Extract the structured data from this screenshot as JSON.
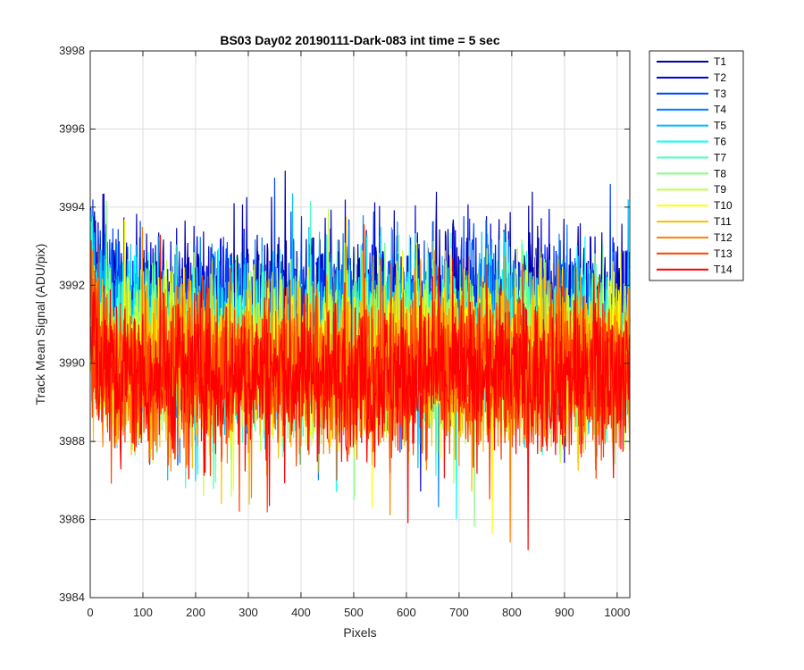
{
  "chart_data": {
    "type": "line",
    "title": "BS03 Day02 20190111-Dark-083 int time = 5 sec",
    "xlabel": "Pixels",
    "ylabel": "Track Mean Signal (ADU/pix)",
    "xlim": [
      0,
      1024
    ],
    "ylim": [
      3984,
      3998
    ],
    "xticks": [
      "0",
      "100",
      "200",
      "300",
      "400",
      "500",
      "600",
      "700",
      "800",
      "900",
      "1000"
    ],
    "yticks": [
      "3984",
      "3986",
      "3988",
      "3990",
      "3992",
      "3994",
      "3996",
      "3998"
    ],
    "grid": true,
    "legend_position": "outside-top-right",
    "series": [
      {
        "name": "T1",
        "color": "#0000aa",
        "mean": 3991.4,
        "noise": 1.2
      },
      {
        "name": "T2",
        "color": "#0000dd",
        "mean": 3991.2,
        "noise": 1.2
      },
      {
        "name": "T3",
        "color": "#0040ff",
        "mean": 3991.0,
        "noise": 1.2
      },
      {
        "name": "T4",
        "color": "#0080ff",
        "mean": 3990.8,
        "noise": 1.2
      },
      {
        "name": "T5",
        "color": "#00bfff",
        "mean": 3990.6,
        "noise": 1.2
      },
      {
        "name": "T6",
        "color": "#00ffff",
        "mean": 3990.5,
        "noise": 1.2
      },
      {
        "name": "T7",
        "color": "#40ffbf",
        "mean": 3990.4,
        "noise": 1.2
      },
      {
        "name": "T8",
        "color": "#80ff80",
        "mean": 3990.3,
        "noise": 1.2
      },
      {
        "name": "T9",
        "color": "#bfff40",
        "mean": 3990.2,
        "noise": 1.2
      },
      {
        "name": "T10",
        "color": "#ffff00",
        "mean": 3990.1,
        "noise": 1.2
      },
      {
        "name": "T11",
        "color": "#ffbf00",
        "mean": 3990.0,
        "noise": 1.2
      },
      {
        "name": "T12",
        "color": "#ff8000",
        "mean": 3989.9,
        "noise": 1.2
      },
      {
        "name": "T13",
        "color": "#ff4000",
        "mean": 3989.8,
        "noise": 1.2
      },
      {
        "name": "T14",
        "color": "#ff0000",
        "mean": 3989.7,
        "noise": 1.2
      }
    ]
  }
}
